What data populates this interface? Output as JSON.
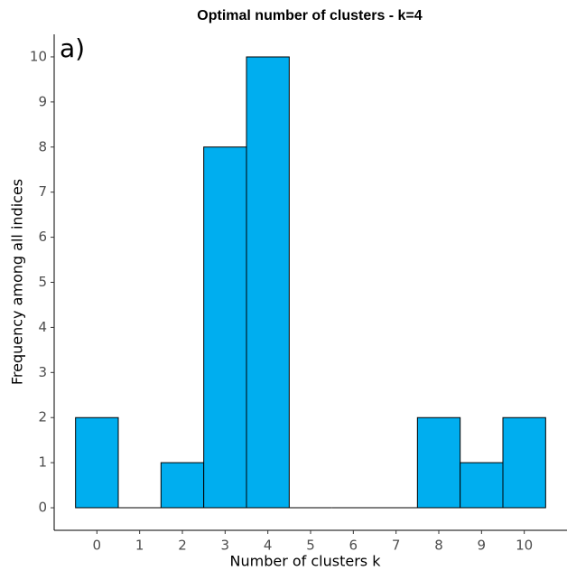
{
  "chart_data": {
    "type": "bar",
    "title": "Optimal number of clusters - k=4",
    "annotation": "a)",
    "x_label": "Number of clusters k",
    "y_label": "Frequency among all indices",
    "x": [
      0,
      1,
      2,
      3,
      4,
      5,
      6,
      7,
      8,
      9,
      10
    ],
    "values": [
      2,
      0,
      1,
      8,
      10,
      0,
      0,
      0,
      2,
      1,
      2
    ],
    "color": "#00aeef",
    "edge_color": "#000000",
    "xlim": [
      -1,
      11
    ],
    "xticks": [
      0,
      1,
      2,
      3,
      4,
      5,
      6,
      7,
      8,
      9,
      10
    ],
    "ylim": [
      -0.5,
      10.5
    ],
    "yticks": [
      0,
      1,
      2,
      3,
      4,
      5,
      6,
      7,
      8,
      9,
      10
    ],
    "grid": false
  }
}
